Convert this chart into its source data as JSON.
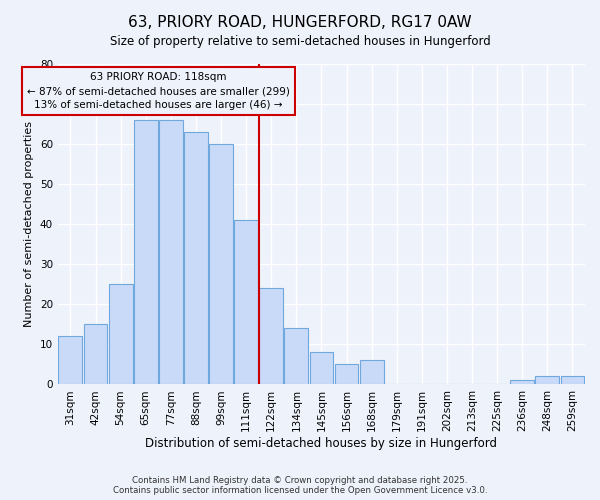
{
  "title": "63, PRIORY ROAD, HUNGERFORD, RG17 0AW",
  "subtitle": "Size of property relative to semi-detached houses in Hungerford",
  "xlabel": "Distribution of semi-detached houses by size in Hungerford",
  "ylabel": "Number of semi-detached properties",
  "bar_labels": [
    "31sqm",
    "42sqm",
    "54sqm",
    "65sqm",
    "77sqm",
    "88sqm",
    "99sqm",
    "111sqm",
    "122sqm",
    "134sqm",
    "145sqm",
    "156sqm",
    "168sqm",
    "179sqm",
    "191sqm",
    "202sqm",
    "213sqm",
    "225sqm",
    "236sqm",
    "248sqm",
    "259sqm"
  ],
  "bar_values": [
    12,
    15,
    25,
    66,
    66,
    63,
    60,
    41,
    24,
    14,
    8,
    5,
    6,
    0,
    0,
    0,
    0,
    0,
    1,
    2,
    2
  ],
  "bar_color": "#c9daf8",
  "bar_edge_color": "#6fa8dc",
  "vline_x_index": 8,
  "vline_color": "#cc0000",
  "annotation_title": "63 PRIORY ROAD: 118sqm",
  "annotation_line1": "← 87% of semi-detached houses are smaller (299)",
  "annotation_line2": "13% of semi-detached houses are larger (46) →",
  "annotation_box_edge": "#cc0000",
  "ylim": [
    0,
    80
  ],
  "yticks": [
    0,
    10,
    20,
    30,
    40,
    50,
    60,
    70,
    80
  ],
  "footer1": "Contains HM Land Registry data © Crown copyright and database right 2025.",
  "footer2": "Contains public sector information licensed under the Open Government Licence v3.0.",
  "background_color": "#eef2fb",
  "grid_color": "#ffffff"
}
